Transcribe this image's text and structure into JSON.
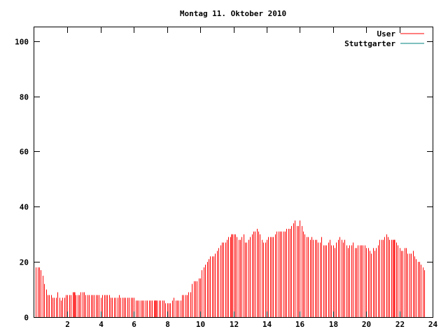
{
  "chart_data": {
    "type": "bar",
    "title": "Montag 11. Oktober 2010",
    "xlabel": "",
    "ylabel": "",
    "xlim": [
      0,
      24
    ],
    "ylim": [
      0,
      105
    ],
    "x_ticks": [
      2,
      4,
      6,
      8,
      10,
      12,
      14,
      16,
      18,
      20,
      22,
      24
    ],
    "y_ticks": [
      0,
      20,
      40,
      60,
      80,
      100
    ],
    "grid": false,
    "legend_position": "top-right",
    "series": [
      {
        "name": "User",
        "color": "#ff0000",
        "interval_hours": 0.1,
        "values": [
          18,
          18,
          18,
          17,
          15,
          12,
          10,
          8,
          8,
          8,
          7,
          7,
          7,
          9,
          7,
          6,
          7,
          7,
          8,
          8,
          8,
          8,
          9,
          9,
          8,
          8,
          8,
          9,
          9,
          9,
          8,
          8,
          8,
          8,
          8,
          8,
          8,
          8,
          8,
          7,
          8,
          8,
          8,
          8,
          8,
          7,
          7,
          7,
          7,
          7,
          8,
          7,
          7,
          7,
          7,
          7,
          7,
          7,
          7,
          7,
          6,
          6,
          6,
          6,
          6,
          6,
          6,
          6,
          6,
          6,
          6,
          6,
          6,
          6,
          6,
          6,
          6,
          6,
          5,
          5,
          5,
          5,
          6,
          7,
          6,
          6,
          6,
          6,
          8,
          8,
          8,
          8,
          9,
          9,
          12,
          13,
          13,
          13,
          14,
          14,
          17,
          18,
          19,
          20,
          21,
          22,
          22,
          22,
          23,
          24,
          25,
          26,
          27,
          27,
          27,
          28,
          29,
          29,
          30,
          30,
          30,
          29,
          28,
          28,
          29,
          30,
          27,
          27,
          28,
          29,
          30,
          31,
          31,
          32,
          31,
          30,
          28,
          27,
          27,
          28,
          29,
          29,
          29,
          29,
          30,
          31,
          31,
          31,
          31,
          31,
          31,
          32,
          32,
          32,
          33,
          34,
          35,
          33,
          33,
          35,
          33,
          31,
          30,
          29,
          29,
          28,
          29,
          28,
          28,
          28,
          27,
          27,
          29,
          26,
          26,
          26,
          27,
          28,
          26,
          26,
          25,
          27,
          28,
          29,
          28,
          27,
          28,
          26,
          25,
          26,
          26,
          27,
          25,
          25,
          26,
          26,
          26,
          26,
          26,
          25,
          25,
          24,
          23,
          25,
          24,
          25,
          26,
          28,
          28,
          28,
          29,
          30,
          29,
          28,
          28,
          28,
          28,
          27,
          26,
          25,
          24,
          24,
          25,
          25,
          23,
          23,
          23,
          24,
          22,
          21,
          20,
          20,
          19,
          18,
          17
        ]
      },
      {
        "name": "Stuttgarter",
        "color": "#008080",
        "interval_hours": 0.1,
        "values": []
      }
    ],
    "highlight_hours": [
      2.4,
      7.3,
      11.9,
      21.7
    ]
  }
}
